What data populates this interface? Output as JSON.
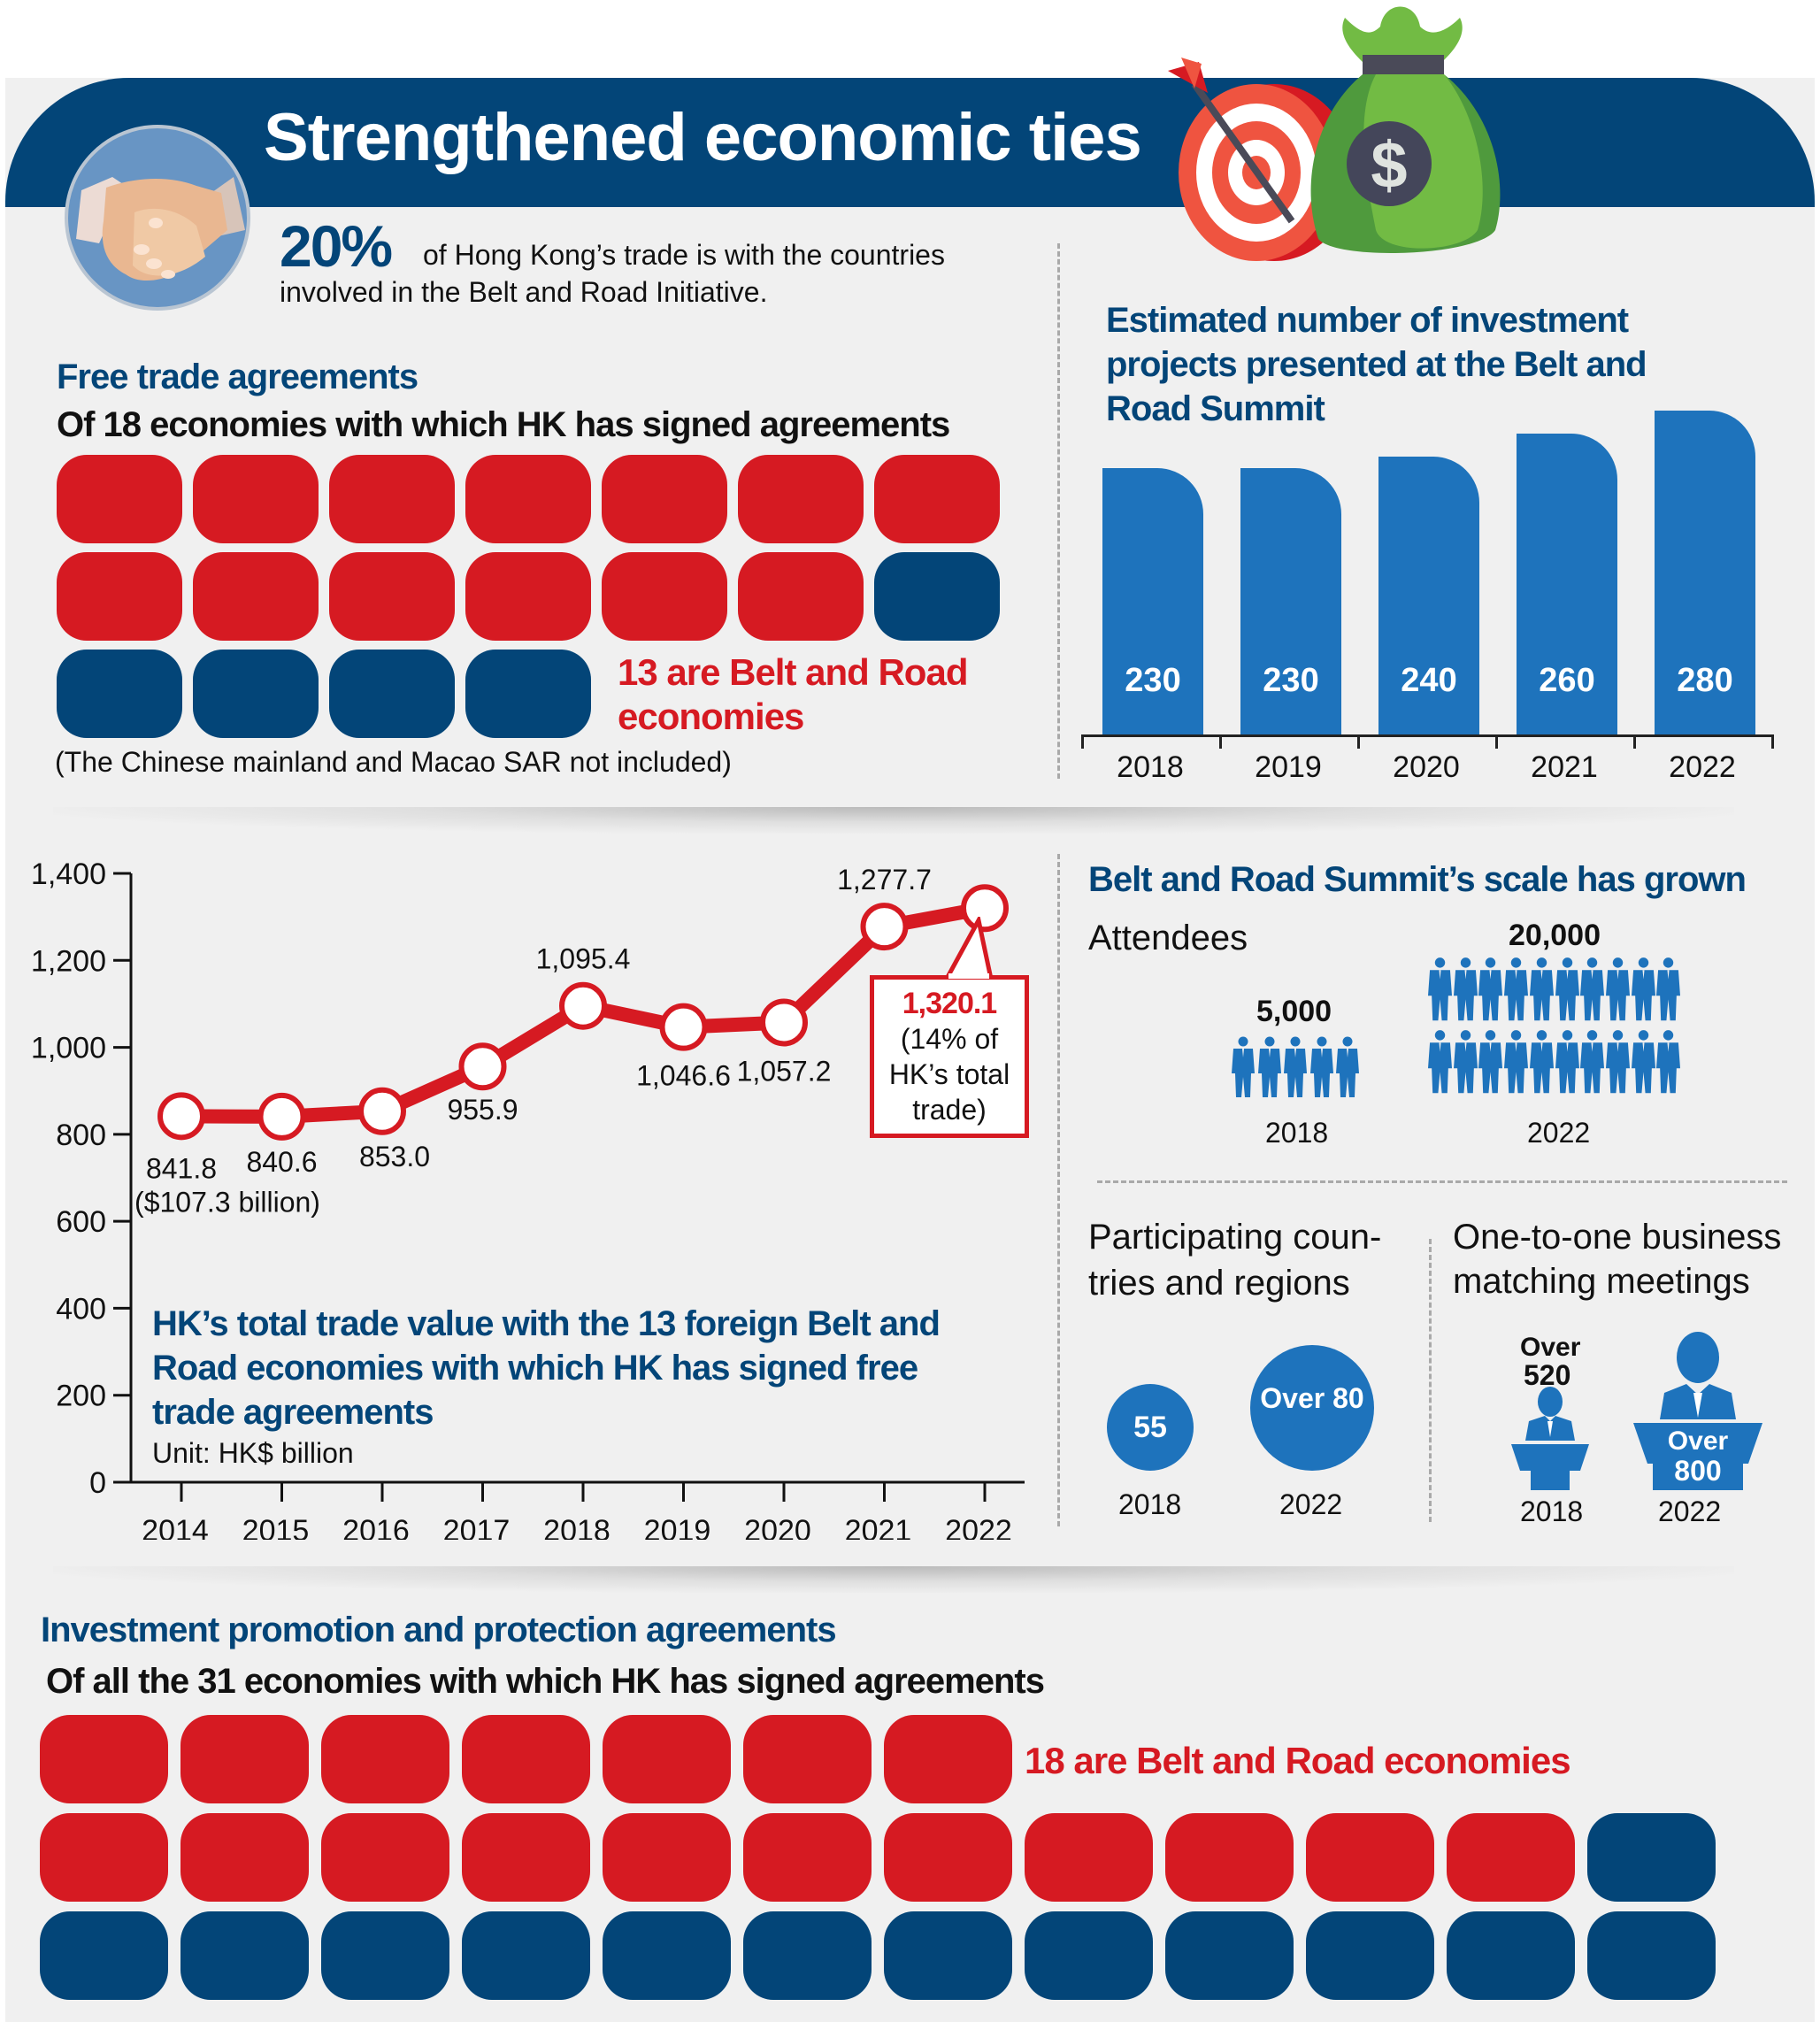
{
  "header": {
    "title": "Strengthened economic ties",
    "intro_percent": "20%",
    "intro_text_line1": "of Hong Kong’s trade is with the countries",
    "intro_text_line2": "involved in the Belt and Road Initiative."
  },
  "icons": {
    "handshake": "handshake-icon",
    "target": "target-icon",
    "money_bag": "money-bag-icon",
    "person": "person-icon",
    "speaker_podium": "podium-speaker-icon"
  },
  "colors": {
    "navy": "#034578",
    "red": "#d61a22",
    "blue": "#1e73bc",
    "background": "#f0f0f0"
  },
  "fta": {
    "heading": "Free trade agreements",
    "subheading": "Of 18 economies with which HK has signed agreements",
    "total": 18,
    "belt_road": 13,
    "callout_line1": "13 are Belt and Road",
    "callout_line2": "economies",
    "note": "(The Chinese mainland and Macao SAR not included)"
  },
  "ippa": {
    "heading": "Investment promotion and protection agreements",
    "subheading": "Of all the 31 economies with which HK has signed agreements",
    "total": 31,
    "belt_road": 18,
    "callout": "18 are Belt and Road economies"
  },
  "summit": {
    "heading": "Belt and Road Summit’s scale has grown",
    "attendees": {
      "label": "Attendees",
      "items": [
        {
          "year": "2018",
          "value": "5,000",
          "icons": 5
        },
        {
          "year": "2022",
          "value": "20,000",
          "icons": 20
        }
      ]
    },
    "countries": {
      "label_line1": "Participating coun-",
      "label_line2": "tries and regions",
      "items": [
        {
          "year": "2018",
          "value": "55"
        },
        {
          "year": "2022",
          "value": "Over 80"
        }
      ]
    },
    "meetings": {
      "label_line1": "One-to-one business",
      "label_line2": "matching meetings",
      "items": [
        {
          "year": "2018",
          "value_line1": "Over",
          "value_line2": "520"
        },
        {
          "year": "2022",
          "value_line1": "Over",
          "value_line2": "800"
        }
      ]
    }
  },
  "chart_data": [
    {
      "type": "bar",
      "title": "Estimated number of investment projects presented at the Belt and Road Summit",
      "title_lines": [
        "Estimated number of investment",
        "projects presented at the Belt and",
        "Road Summit"
      ],
      "categories": [
        "2018",
        "2019",
        "2020",
        "2021",
        "2022"
      ],
      "values": [
        230,
        230,
        240,
        260,
        280
      ],
      "value_labels": [
        "230",
        "230",
        "240",
        "260",
        "280"
      ],
      "xlabel": "",
      "ylabel": "",
      "grid": false
    },
    {
      "type": "line",
      "title": "HK’s total trade value with the 13 foreign Belt and Road economies with which HK has signed free trade agreements",
      "title_lines": [
        "HK’s total trade value with the 13 foreign Belt and",
        "Road economies with which HK has signed free",
        "trade agreements"
      ],
      "unit": "Unit: HK$ billion",
      "x": [
        "2014",
        "2015",
        "2016",
        "2017",
        "2018",
        "2019",
        "2020",
        "2021",
        "2022"
      ],
      "values": [
        841.8,
        840.6,
        853.0,
        955.9,
        1095.4,
        1046.6,
        1057.2,
        1277.7,
        1320.1
      ],
      "value_labels": [
        "841.8",
        "840.6",
        "853.0",
        "955.9",
        "1,095.4",
        "1,046.6",
        "1,057.2",
        "1,277.7",
        "1,320.1"
      ],
      "first_note": "($107.3 billion)",
      "last_note_lines": [
        "(14% of",
        "HK’s total",
        "trade)"
      ],
      "ylim": [
        0,
        1400
      ],
      "yticks": [
        0,
        200,
        400,
        600,
        800,
        1000,
        1200,
        1400
      ],
      "ytick_labels": [
        "0",
        "200",
        "400",
        "600",
        "800",
        "1,000",
        "1,200",
        "1,400"
      ],
      "grid": false,
      "legend": "none"
    }
  ]
}
